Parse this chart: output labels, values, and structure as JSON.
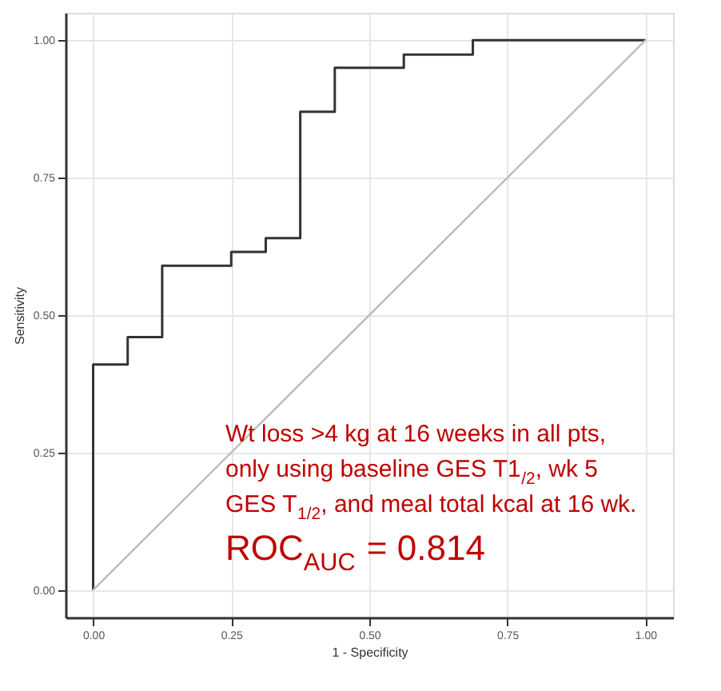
{
  "chart_data": {
    "type": "step",
    "xlabel": "1 - Specificity",
    "ylabel": "Sensitivity",
    "series": [
      {
        "color": "#333333",
        "x": [
          0,
          0,
          0.0625,
          0.125,
          0.25,
          0.3125,
          0.375,
          0.4375,
          0.5625,
          0.6875,
          1
        ],
        "values": [
          0,
          0.41,
          0.46,
          0.59,
          0.615,
          0.64,
          0.87,
          0.95,
          0.974,
          1,
          1
        ]
      },
      {
        "type": "line",
        "color": "#bbbbbb",
        "x": [
          0,
          1
        ],
        "values": [
          0,
          1
        ]
      }
    ],
    "xlim": [
      -0.05,
      1.05
    ],
    "ylim": [
      -0.05,
      1.05
    ],
    "xticks": [
      {
        "value": 0,
        "label": "0.00"
      },
      {
        "value": 0.25,
        "label": "0.25"
      },
      {
        "value": 0.5,
        "label": "0.50"
      },
      {
        "value": 0.75,
        "label": "0.75"
      },
      {
        "value": 1,
        "label": "1.00"
      }
    ],
    "yticks": [
      {
        "value": 0,
        "label": "0.00"
      },
      {
        "value": 0.25,
        "label": "0.25"
      },
      {
        "value": 0.5,
        "label": "0.50"
      },
      {
        "value": 0.75,
        "label": "0.75"
      },
      {
        "value": 1,
        "label": "1.00"
      }
    ],
    "grid": true,
    "annotations": [
      "Wt loss >4 kg at 16 weeks in all pts, only using baseline GES T1$_{/2}$, wk 5 GES T$_{1/2}$, and meal total kcal at 16 wk.",
      "ROC$_{AUC}$ = 0.814"
    ]
  }
}
